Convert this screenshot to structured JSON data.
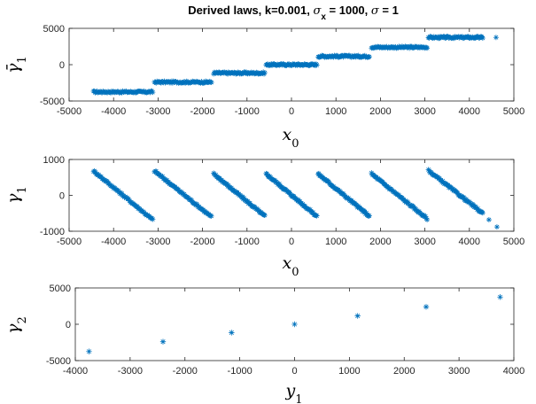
{
  "figure": {
    "title_parts": {
      "prefix": "Derived laws, k=0.001, ",
      "sigma_x_symbol": "σ",
      "sigma_x_sub": "x",
      "sigma_x_value": " = 1000, ",
      "sigma_symbol": "σ",
      "sigma_value": " = 1"
    },
    "series_color": "#0072BD",
    "marker": "asterisk"
  },
  "chart_data": [
    {
      "type": "scatter",
      "xlabel": {
        "base": "x",
        "sub": "0"
      },
      "ylabel": {
        "base": "γ̄",
        "sub": "1"
      },
      "xlim": [
        -5000,
        5000
      ],
      "ylim": [
        -5000,
        5000
      ],
      "xticks": [
        "-5000",
        "-4000",
        "-3000",
        "-2000",
        "-1000",
        "0",
        "1000",
        "2000",
        "3000",
        "4000",
        "5000"
      ],
      "yticks": [
        "-5000",
        "0",
        "5000"
      ],
      "pattern": "staircase",
      "segments": [
        {
          "x": [
            -4450,
            -3120
          ],
          "y": -3750
        },
        {
          "x": [
            -3080,
            -1800
          ],
          "y": -2400
        },
        {
          "x": [
            -1750,
            -600
          ],
          "y": -1150
        },
        {
          "x": [
            -570,
            570
          ],
          "y": 0
        },
        {
          "x": [
            600,
            1750
          ],
          "y": 1150
        },
        {
          "x": [
            1800,
            3050
          ],
          "y": 2400
        },
        {
          "x": [
            3080,
            4300
          ],
          "y": 3750
        }
      ],
      "outliers": [
        {
          "x": 4600,
          "y": 3750
        }
      ]
    },
    {
      "type": "scatter",
      "xlabel": {
        "base": "x",
        "sub": "0"
      },
      "ylabel": {
        "base": "γ",
        "sub": "1"
      },
      "xlim": [
        -5000,
        5000
      ],
      "ylim": [
        -1000,
        1000
      ],
      "xticks": [
        "-5000",
        "-4000",
        "-3000",
        "-2000",
        "-1000",
        "0",
        "1000",
        "2000",
        "3000",
        "4000",
        "5000"
      ],
      "yticks": [
        "-1000",
        "0",
        "1000"
      ],
      "pattern": "sawtooth",
      "segments": [
        {
          "x": [
            -4450,
            -3120
          ],
          "y": [
            680,
            -680
          ]
        },
        {
          "x": [
            -3080,
            -1800
          ],
          "y": [
            680,
            -600
          ]
        },
        {
          "x": [
            -1750,
            -600
          ],
          "y": [
            600,
            -580
          ]
        },
        {
          "x": [
            -570,
            570
          ],
          "y": [
            600,
            -580
          ]
        },
        {
          "x": [
            600,
            1750
          ],
          "y": [
            600,
            -580
          ]
        },
        {
          "x": [
            1800,
            3050
          ],
          "y": [
            600,
            -650
          ]
        },
        {
          "x": [
            3080,
            4300
          ],
          "y": [
            690,
            -500
          ]
        }
      ],
      "outliers": [
        {
          "x": 4440,
          "y": -680
        },
        {
          "x": 4620,
          "y": -880
        }
      ]
    },
    {
      "type": "scatter",
      "xlabel": {
        "base": "y",
        "sub": "1"
      },
      "ylabel": {
        "base": "γ",
        "sub": "2"
      },
      "xlim": [
        -4000,
        4000
      ],
      "ylim": [
        -5000,
        5000
      ],
      "xticks": [
        "-4000",
        "-3000",
        "-2000",
        "-1000",
        "0",
        "1000",
        "2000",
        "3000",
        "4000"
      ],
      "yticks": [
        "-5000",
        "0",
        "5000"
      ],
      "points": [
        {
          "x": -3750,
          "y": -3750
        },
        {
          "x": -2400,
          "y": -2400
        },
        {
          "x": -1150,
          "y": -1150
        },
        {
          "x": 0,
          "y": 0
        },
        {
          "x": 1150,
          "y": 1150
        },
        {
          "x": 2400,
          "y": 2400
        },
        {
          "x": 3750,
          "y": 3750
        }
      ]
    }
  ]
}
